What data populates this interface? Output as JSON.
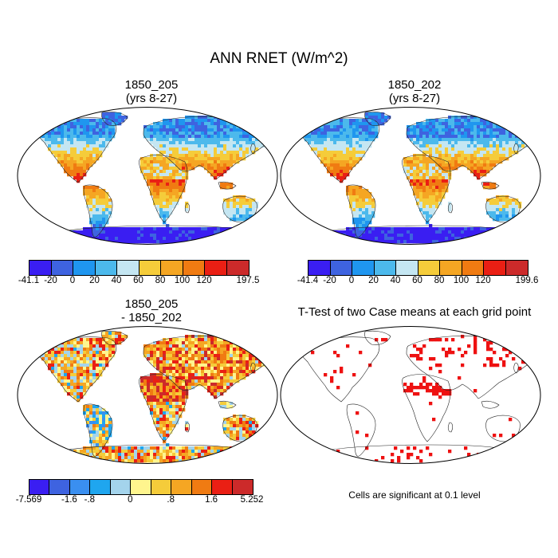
{
  "title": "ANN RNET (W/m^2)",
  "panels": [
    {
      "id": "p1",
      "title_line1": "1850_205",
      "title_line2": "(yrs 8-27)"
    },
    {
      "id": "p2",
      "title_line1": "1850_202",
      "title_line2": "(yrs 8-27)"
    },
    {
      "id": "p3",
      "title_line1": "1850_205",
      "title_line2": "- 1850_202"
    },
    {
      "id": "p4",
      "title_line1": "T-Test of two Case means at each grid point",
      "title_line2": ""
    }
  ],
  "colorbars": {
    "cb1": {
      "colors": [
        "#3a1ef2",
        "#3e63e0",
        "#1f96ef",
        "#4cb9ec",
        "#c4e6f2",
        "#f5cc3a",
        "#f5a623",
        "#f07b12",
        "#ea1f14",
        "#cc2a2a"
      ],
      "labels": [
        "-41.1",
        "-20",
        "0",
        "20",
        "40",
        "60",
        "80",
        "100",
        "120",
        "197.5"
      ]
    },
    "cb2": {
      "colors": [
        "#3a1ef2",
        "#3e63e0",
        "#1f96ef",
        "#4cb9ec",
        "#c4e6f2",
        "#f5cc3a",
        "#f5a623",
        "#f07b12",
        "#ea1f14",
        "#cc2a2a"
      ],
      "labels": [
        "-41.4",
        "-20",
        "0",
        "20",
        "40",
        "60",
        "80",
        "100",
        "120",
        "199.6"
      ]
    },
    "cb3": {
      "colors": [
        "#3a1ef2",
        "#3e63e0",
        "#3a8ff0",
        "#1fa6ef",
        "#a4d4ec",
        "#fff58e",
        "#f5cc3a",
        "#f5a623",
        "#f07b12",
        "#ea1f14",
        "#cc2a2a"
      ],
      "labels": [
        "-7.569",
        "-1.6",
        "-.8",
        "0",
        ".8",
        "1.6",
        "5.252"
      ]
    }
  },
  "significance_note": "Cells are significant at 0.1 level",
  "colors": {
    "significant": "#ee1111",
    "coast": "#222222",
    "frame": "#000000"
  }
}
